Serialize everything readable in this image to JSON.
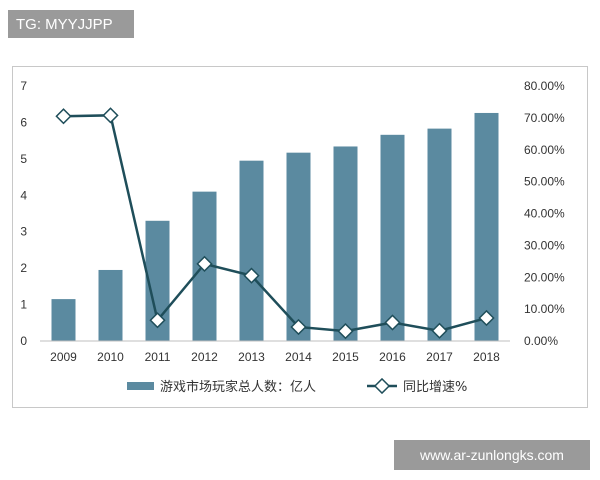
{
  "watermarks": {
    "top": "TG: MYYJJPP",
    "bottom": "www.ar-zunlongks.com"
  },
  "chart_data": {
    "type": "bar",
    "categories": [
      "2009",
      "2010",
      "2011",
      "2012",
      "2013",
      "2014",
      "2015",
      "2016",
      "2017",
      "2018"
    ],
    "series": [
      {
        "name": "游戏市场玩家总人数：亿人",
        "type": "bar",
        "axis": "left",
        "values": [
          1.15,
          1.95,
          3.3,
          4.1,
          4.95,
          5.17,
          5.34,
          5.66,
          5.83,
          6.26
        ],
        "color": "#5b8aa0"
      },
      {
        "name": "同比增速%",
        "type": "line",
        "axis": "right",
        "values": [
          70.5,
          70.8,
          6.5,
          24.2,
          20.5,
          4.4,
          3.1,
          5.8,
          3.2,
          7.2
        ],
        "color": "#1f4e5a"
      }
    ],
    "y_left": {
      "min": 0,
      "max": 7,
      "ticks": [
        "0",
        "1",
        "2",
        "3",
        "4",
        "5",
        "6",
        "7"
      ]
    },
    "y_right": {
      "min": 0,
      "max": 80,
      "ticks": [
        "0.00%",
        "10.00%",
        "20.00%",
        "30.00%",
        "40.00%",
        "50.00%",
        "60.00%",
        "70.00%",
        "80.00%"
      ]
    },
    "legend_position": "bottom",
    "grid": false
  }
}
